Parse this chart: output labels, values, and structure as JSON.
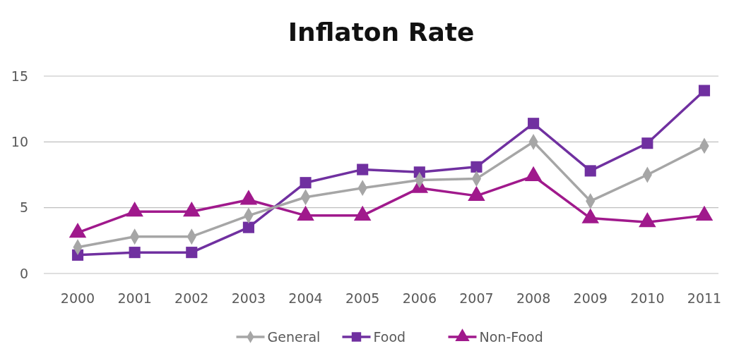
{
  "chart_data": {
    "type": "line",
    "title": "Inflaton Rate",
    "categories": [
      "2000",
      "2001",
      "2002",
      "2003",
      "2004",
      "2005",
      "2006",
      "2007",
      "2008",
      "2009",
      "2010",
      "2011"
    ],
    "series": [
      {
        "name": "General",
        "color": "#a6a6a6",
        "marker": "diamond",
        "values": [
          2.0,
          2.8,
          2.8,
          4.4,
          5.8,
          6.5,
          7.1,
          7.2,
          10.0,
          5.5,
          7.5,
          9.7
        ]
      },
      {
        "name": "Food",
        "color": "#7030a0",
        "marker": "square",
        "values": [
          1.4,
          1.6,
          1.6,
          3.5,
          6.9,
          7.9,
          7.7,
          8.1,
          11.4,
          7.8,
          9.9,
          13.9
        ]
      },
      {
        "name": "Non-Food",
        "color": "#a0198c",
        "marker": "triangle",
        "values": [
          3.1,
          4.7,
          4.7,
          5.6,
          4.4,
          4.4,
          6.5,
          5.9,
          7.4,
          4.2,
          3.9,
          4.4
        ]
      }
    ],
    "ylim": [
      0,
      15
    ],
    "yticks": [
      0,
      5,
      10,
      15
    ],
    "grid": "y",
    "legend": "bottom",
    "line_style": "solid"
  }
}
